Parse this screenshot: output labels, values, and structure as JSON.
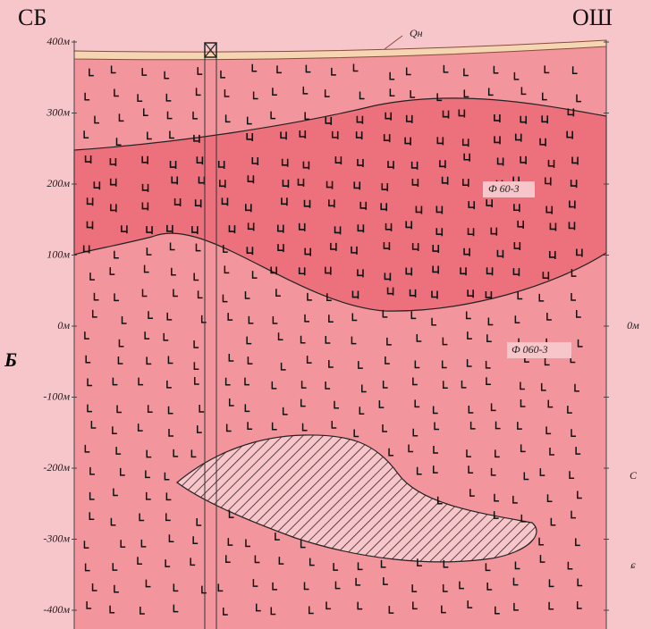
{
  "header": {
    "left": "СБ",
    "right": "ОШ"
  },
  "depth_labels": [
    "400м",
    "300м",
    "200м",
    "100м",
    "0м",
    "-100м",
    "-200м",
    "-300м",
    "-400м"
  ],
  "layer_labels": {
    "top": "Qн",
    "middle": "Ф 60-3",
    "lower": "Ф 060-3"
  },
  "right_labels": [
    "0м",
    "С",
    "ɕ"
  ],
  "left_marker": "Б"
}
